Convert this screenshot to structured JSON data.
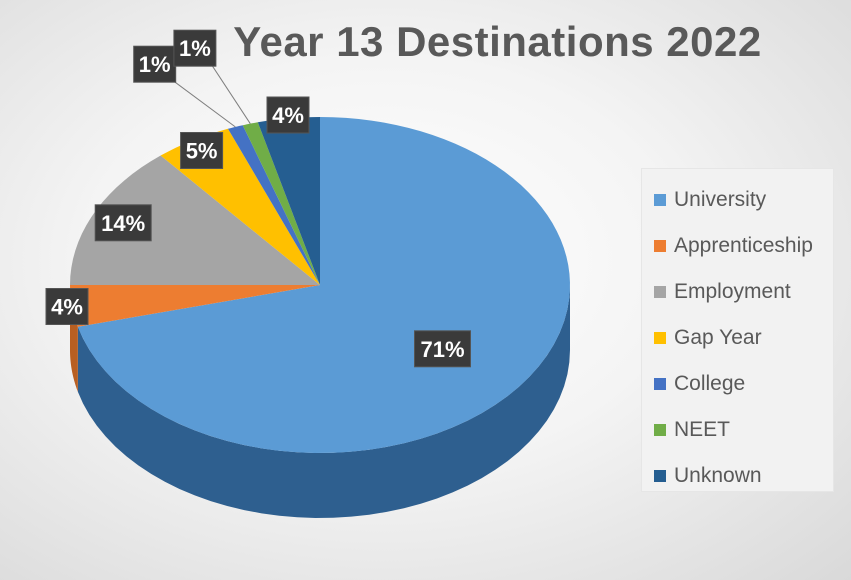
{
  "chart_data": {
    "type": "pie",
    "title": "Year 13 Destinations 2022",
    "categories": [
      "University",
      "Apprenticeship",
      "Employment",
      "Gap Year",
      "College",
      "NEET",
      "Unknown"
    ],
    "values": [
      71,
      4,
      14,
      5,
      1,
      1,
      4
    ],
    "labels": [
      "71%",
      "4%",
      "14%",
      "5%",
      "1%",
      "1%",
      "4%"
    ],
    "colors": [
      "#5b9bd5",
      "#ed7d31",
      "#a5a5a5",
      "#ffc000",
      "#4472c4",
      "#70ad47",
      "#255e91"
    ],
    "side_colors": [
      "#2e5f8f",
      "#b85f22",
      "#7a7a7a",
      "#c49200",
      "#2d4f8c",
      "#4f7a32",
      "#163d60"
    ],
    "legend_position": "right",
    "style": "3D pie"
  }
}
